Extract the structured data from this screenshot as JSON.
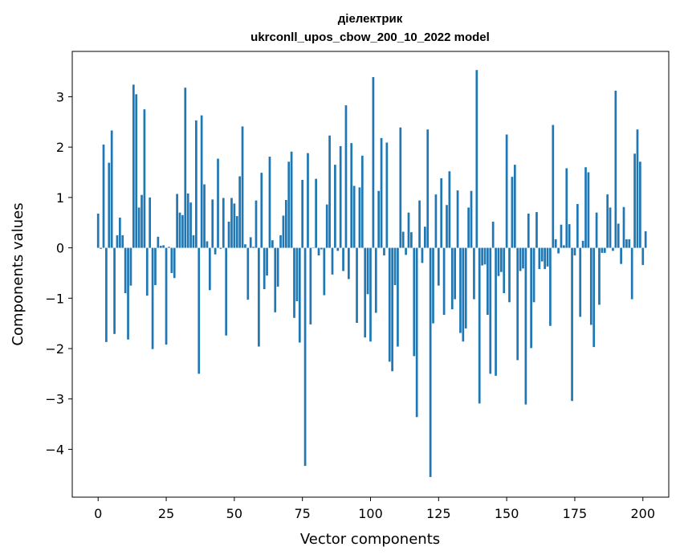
{
  "chart_data": {
    "type": "bar",
    "title": "діелектрик",
    "subtitle": "ukrconll_upos_cbow_200_10_2022 model",
    "xlabel": "Vector components",
    "ylabel": "Components values",
    "xlim": [
      -9.5,
      209.5
    ],
    "ylim": [
      -4.95,
      3.9
    ],
    "xticks": [
      0,
      25,
      50,
      75,
      100,
      125,
      150,
      175,
      200
    ],
    "xtick_labels": [
      "0",
      "25",
      "50",
      "75",
      "100",
      "125",
      "150",
      "175",
      "200"
    ],
    "yticks": [
      3,
      2,
      1,
      0,
      -1,
      -2,
      -3,
      -4
    ],
    "ytick_labels": [
      "3",
      "2",
      "1",
      "0",
      "−1",
      "−2",
      "−3",
      "−4"
    ],
    "bar_color": "#1f77b4",
    "grid": false,
    "series": [
      {
        "values": [
          0.68,
          -0.02,
          2.05,
          -1.87,
          1.69,
          2.33,
          -1.71,
          0.25,
          0.6,
          0.25,
          -0.9,
          -1.82,
          -0.75,
          3.24,
          3.05,
          0.8,
          1.05,
          2.75,
          -0.95,
          1.0,
          -2.01,
          -0.74,
          0.22,
          0.04,
          0.05,
          -1.92,
          0.02,
          -0.5,
          -0.6,
          1.07,
          0.7,
          0.65,
          3.18,
          1.08,
          0.9,
          0.25,
          2.53,
          -2.5,
          2.63,
          1.26,
          0.13,
          -0.84,
          0.96,
          -0.13,
          1.77,
          -0.02,
          0.99,
          -1.74,
          0.52,
          0.99,
          0.88,
          0.63,
          1.42,
          2.41,
          0.07,
          -1.03,
          0.21,
          0.02,
          0.94,
          -1.96,
          1.49,
          -0.82,
          -0.55,
          1.81,
          0.15,
          -1.28,
          -0.77,
          0.25,
          0.64,
          0.95,
          1.71,
          1.91,
          -1.39,
          -1.06,
          -1.88,
          1.35,
          -4.33,
          1.88,
          -1.52,
          0.0,
          1.37,
          -0.15,
          -0.03,
          -0.94,
          0.86,
          2.23,
          -0.53,
          1.65,
          -0.06,
          2.02,
          -0.46,
          2.83,
          -0.62,
          2.08,
          1.23,
          -1.49,
          1.2,
          1.83,
          -1.78,
          -0.92,
          -1.86,
          3.39,
          -1.29,
          1.13,
          2.18,
          -0.15,
          2.09,
          -2.26,
          -2.45,
          -0.74,
          -1.96,
          2.39,
          0.32,
          -0.14,
          0.7,
          0.31,
          -2.15,
          -3.36,
          0.94,
          -0.3,
          0.42,
          2.35,
          -4.55,
          -1.5,
          1.06,
          -0.75,
          1.38,
          -1.33,
          0.85,
          1.52,
          -1.22,
          -1.02,
          1.14,
          -1.69,
          -1.86,
          -1.6,
          0.8,
          1.13,
          -1.02,
          3.53,
          -3.09,
          -0.35,
          -0.33,
          -1.33,
          -2.5,
          0.52,
          -2.54,
          -0.56,
          -0.48,
          -0.9,
          2.25,
          -1.08,
          1.41,
          1.65,
          -2.23,
          -0.46,
          -0.41,
          -3.11,
          0.68,
          -1.99,
          -1.08,
          0.71,
          -0.42,
          -0.27,
          -0.42,
          -0.37,
          -1.55,
          2.44,
          0.17,
          -0.11,
          0.46,
          0.05,
          1.58,
          0.47,
          -3.04,
          -0.15,
          0.87,
          -1.37,
          0.14,
          1.6,
          1.5,
          -1.53,
          -1.97,
          0.7,
          -1.13,
          -0.1,
          -0.1,
          1.06,
          0.8,
          -0.06,
          3.12,
          0.48,
          -0.32,
          0.81,
          0.17,
          0.17,
          -1.02,
          1.87,
          2.35,
          1.71,
          -0.34,
          0.33
        ]
      }
    ]
  }
}
